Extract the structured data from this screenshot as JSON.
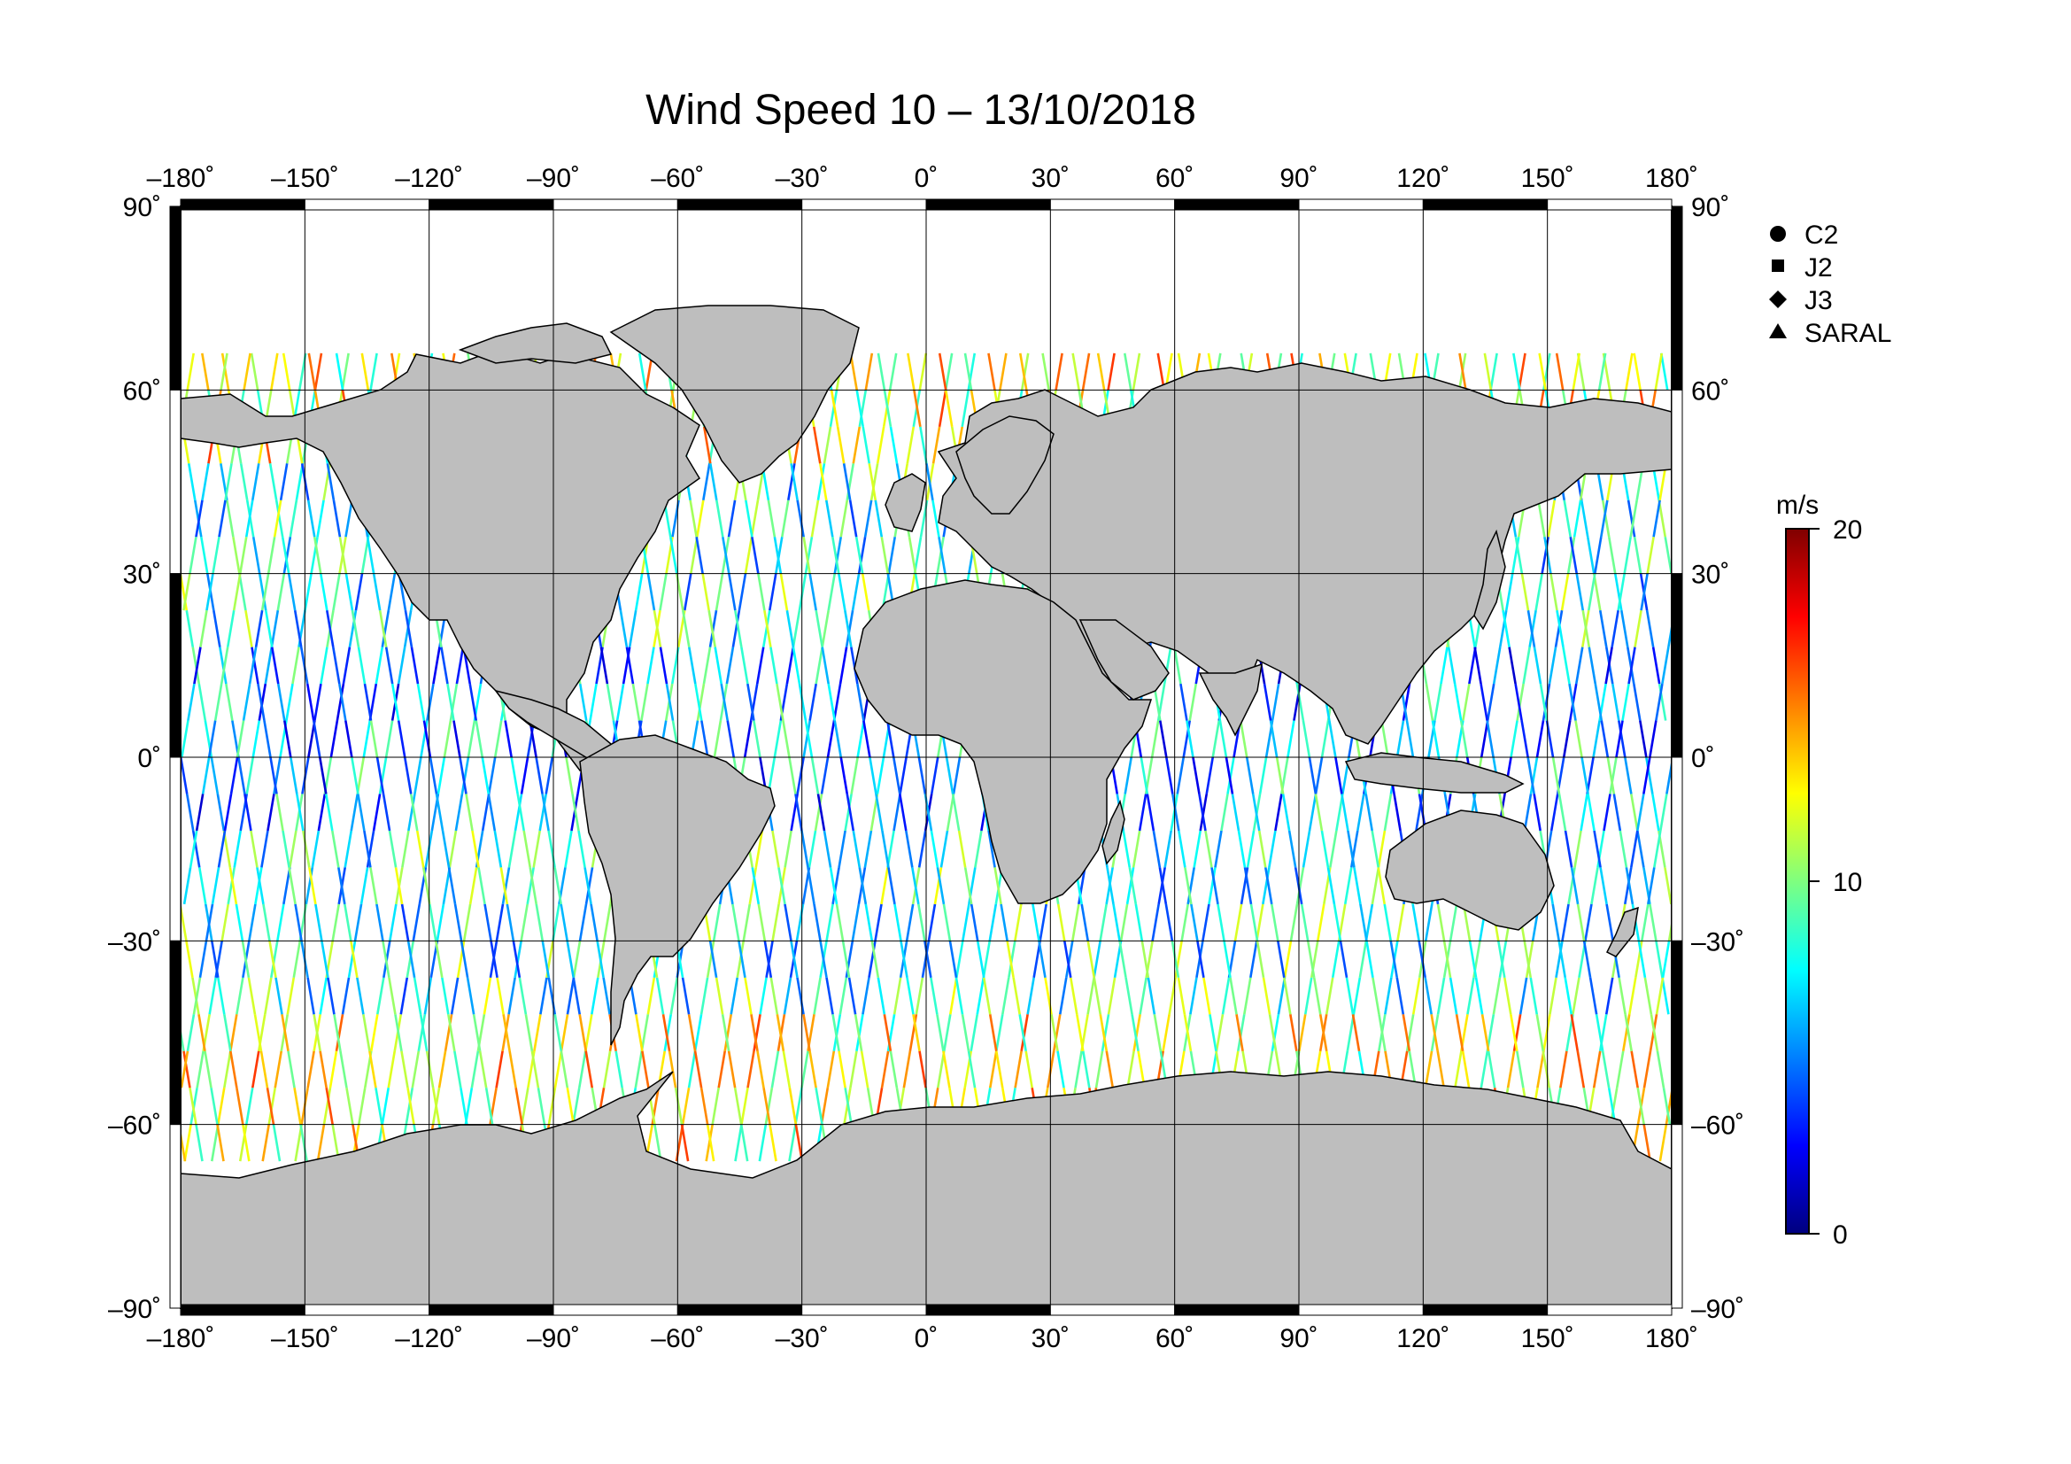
{
  "title": "Wind Speed 10 – 13/10/2018",
  "axes": {
    "lon_ticks": [
      "–180˚",
      "–150˚",
      "–120˚",
      "–90˚",
      "–60˚",
      "–30˚",
      "0˚",
      "30˚",
      "60˚",
      "90˚",
      "120˚",
      "150˚",
      "180˚"
    ],
    "lon_values": [
      -180,
      -150,
      -120,
      -90,
      -60,
      -30,
      0,
      30,
      60,
      90,
      120,
      150,
      180
    ],
    "lat_ticks": [
      "90˚",
      "60˚",
      "30˚",
      "0˚",
      "–30˚",
      "–60˚",
      "–90˚"
    ],
    "lat_values": [
      90,
      60,
      30,
      0,
      -30,
      -60,
      -90
    ]
  },
  "legend": {
    "items": [
      {
        "label": "C2",
        "symbol": "circle"
      },
      {
        "label": "J2",
        "symbol": "square"
      },
      {
        "label": "J3",
        "symbol": "diamond"
      },
      {
        "label": "SARAL",
        "symbol": "triangle"
      }
    ]
  },
  "colorbar": {
    "unit": "m/s",
    "ticks": [
      "20",
      "10",
      "0"
    ],
    "values": [
      20,
      10,
      0
    ],
    "range": [
      0,
      20
    ]
  },
  "colors": {
    "land": "#bebebe",
    "coast": "#000000",
    "ocean": "#ffffff"
  }
}
